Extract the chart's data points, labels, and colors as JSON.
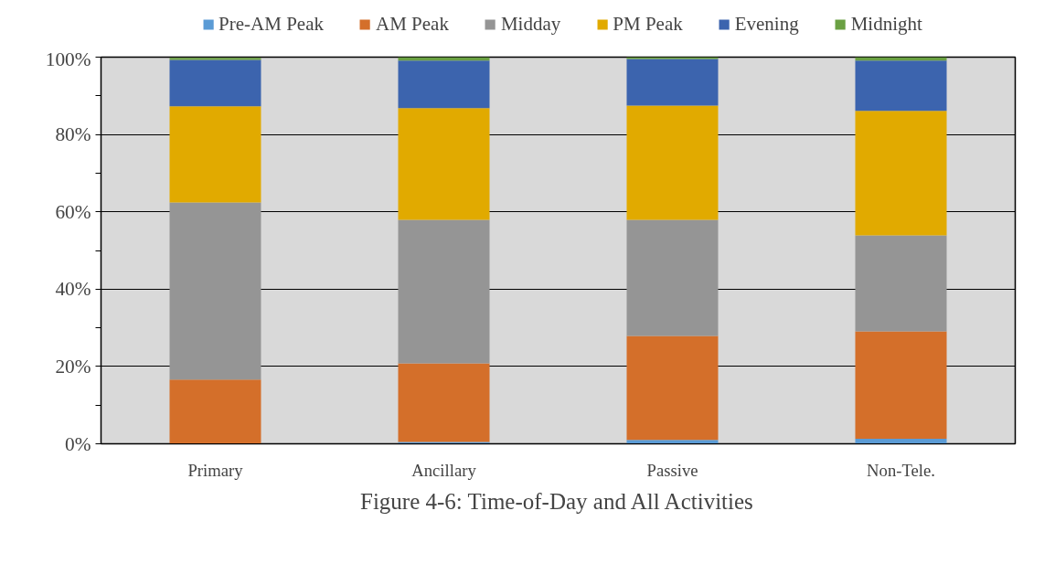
{
  "chart_data": {
    "type": "bar",
    "stacked": true,
    "categories": [
      "Primary",
      "Ancillary",
      "Passive",
      "Non-Tele."
    ],
    "series": [
      {
        "name": "Pre-AM Peak",
        "color": "#5b9bd5",
        "values": [
          null,
          0.5,
          1.0,
          1.3
        ]
      },
      {
        "name": "AM Peak",
        "color": "#d46f2a",
        "values": [
          16.6,
          20.3,
          26.9,
          27.8
        ]
      },
      {
        "name": "Midday",
        "color": "#959595",
        "values": [
          45.8,
          37.1,
          30.0,
          24.8
        ]
      },
      {
        "name": "PM Peak",
        "color": "#e1aa00",
        "values": [
          24.9,
          28.9,
          29.6,
          32.2
        ]
      },
      {
        "name": "Evening",
        "color": "#3c64ae",
        "values": [
          12.0,
          12.3,
          12.0,
          13.0
        ]
      },
      {
        "name": "Midnight",
        "color": "#6aa043",
        "values": [
          0.5,
          0.9,
          0.5,
          0.9
        ]
      }
    ],
    "ylim": [
      0,
      100
    ],
    "yticks": [
      {
        "value": 0,
        "label": "0%"
      },
      {
        "value": 10,
        "label": null
      },
      {
        "value": 20,
        "label": "20%"
      },
      {
        "value": 30,
        "label": null
      },
      {
        "value": 40,
        "label": "40%"
      },
      {
        "value": 50,
        "label": null
      },
      {
        "value": 60,
        "label": "60%"
      },
      {
        "value": 70,
        "label": null
      },
      {
        "value": 80,
        "label": "80%"
      },
      {
        "value": 90,
        "label": null
      },
      {
        "value": 100,
        "label": "100%"
      }
    ],
    "grid": "y",
    "legend": "top",
    "annotations": [
      "Figure 4-6: Time-of-Day and All Activities"
    ]
  }
}
